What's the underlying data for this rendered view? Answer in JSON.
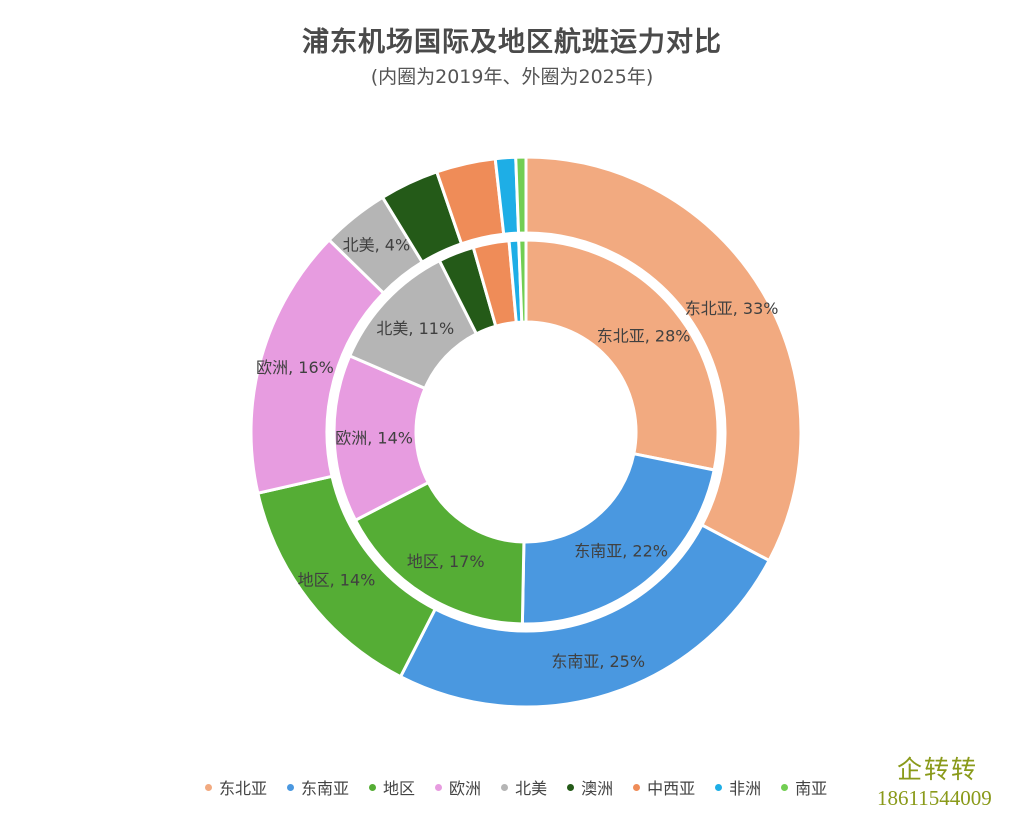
{
  "chart_data": {
    "type": "pie",
    "variant": "double-ring donut",
    "title": "浦东机场国际及地区航班运力对比",
    "subtitle": "(内圈为2019年、外圈为2025年)",
    "categories": [
      "东北亚",
      "东南亚",
      "地区",
      "欧洲",
      "北美",
      "澳洲",
      "中西亚",
      "非洲",
      "南亚"
    ],
    "colors": [
      "#f2aa80",
      "#4a98e0",
      "#55ad35",
      "#e79ce0",
      "#b5b5b5",
      "#245a18",
      "#ef8c58",
      "#1eaee6",
      "#72ce52"
    ],
    "series": [
      {
        "ring": "inner",
        "values": [
          28,
          22,
          17,
          14,
          11,
          3,
          3,
          0.8,
          0.6
        ],
        "labels": [
          "东北亚, 28%",
          "东南亚, 22%",
          "地区, 17%",
          "欧洲, 14%",
          "北美, 11%",
          "",
          "",
          "",
          ""
        ]
      },
      {
        "ring": "outer",
        "values": [
          33,
          25,
          14,
          16,
          4,
          3.5,
          3.5,
          1.2,
          0.6
        ],
        "labels": [
          "东北亚, 33%",
          "东南亚, 25%",
          "地区, 14%",
          "欧洲, 16%",
          "北美, 4%",
          "",
          "",
          "",
          ""
        ]
      }
    ],
    "legend": "bottom"
  },
  "watermark": {
    "name": "企转转",
    "phone": "18611544009"
  }
}
